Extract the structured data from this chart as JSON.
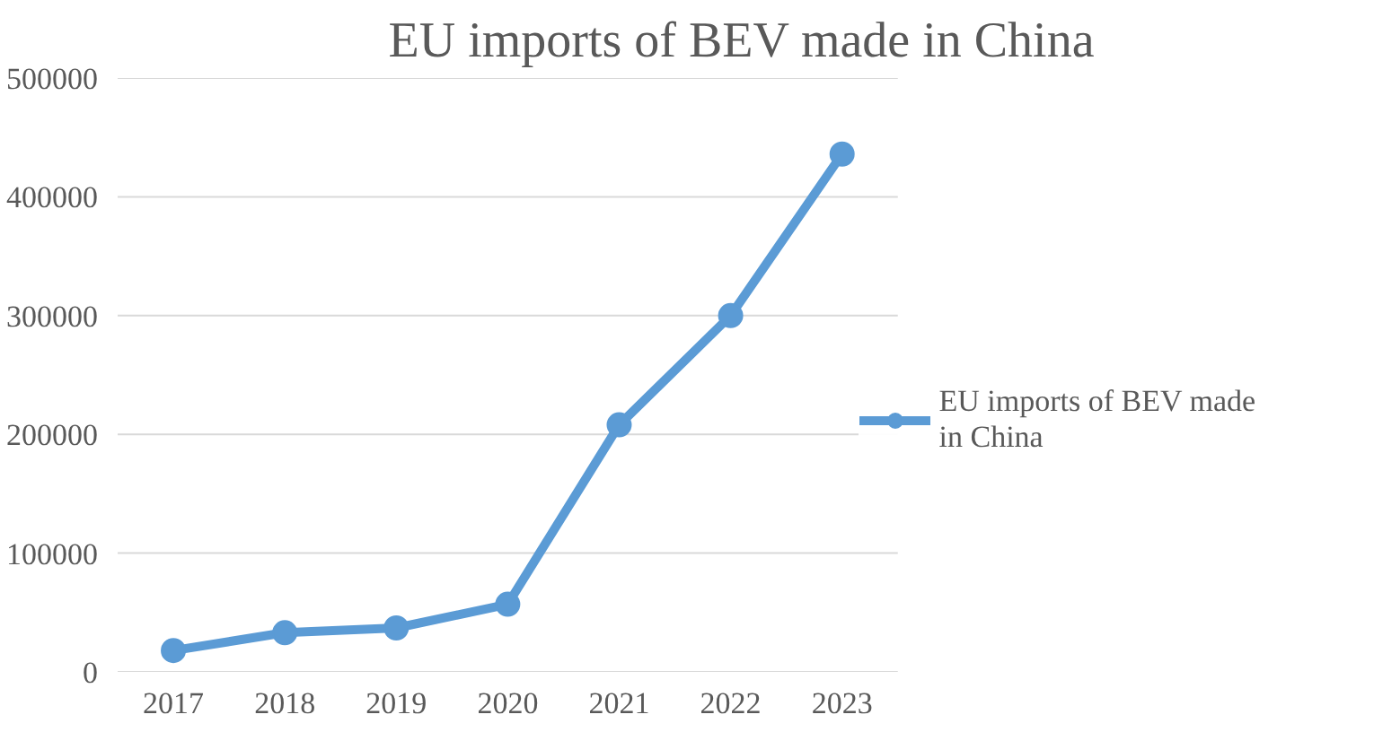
{
  "chart_data": {
    "type": "line",
    "title": "EU imports of BEV made in China",
    "categories": [
      "2017",
      "2018",
      "2019",
      "2020",
      "2021",
      "2022",
      "2023"
    ],
    "series": [
      {
        "name": "EU imports of BEV made in China",
        "color": "#5b9bd5",
        "values": [
          18000,
          33000,
          37000,
          57000,
          208000,
          300000,
          436000
        ]
      }
    ],
    "ylim": [
      0,
      500000
    ],
    "yticks": [
      0,
      100000,
      200000,
      300000,
      400000,
      500000
    ],
    "grid": "y",
    "legend": "right",
    "marker": "circle",
    "line_style": "solid"
  }
}
